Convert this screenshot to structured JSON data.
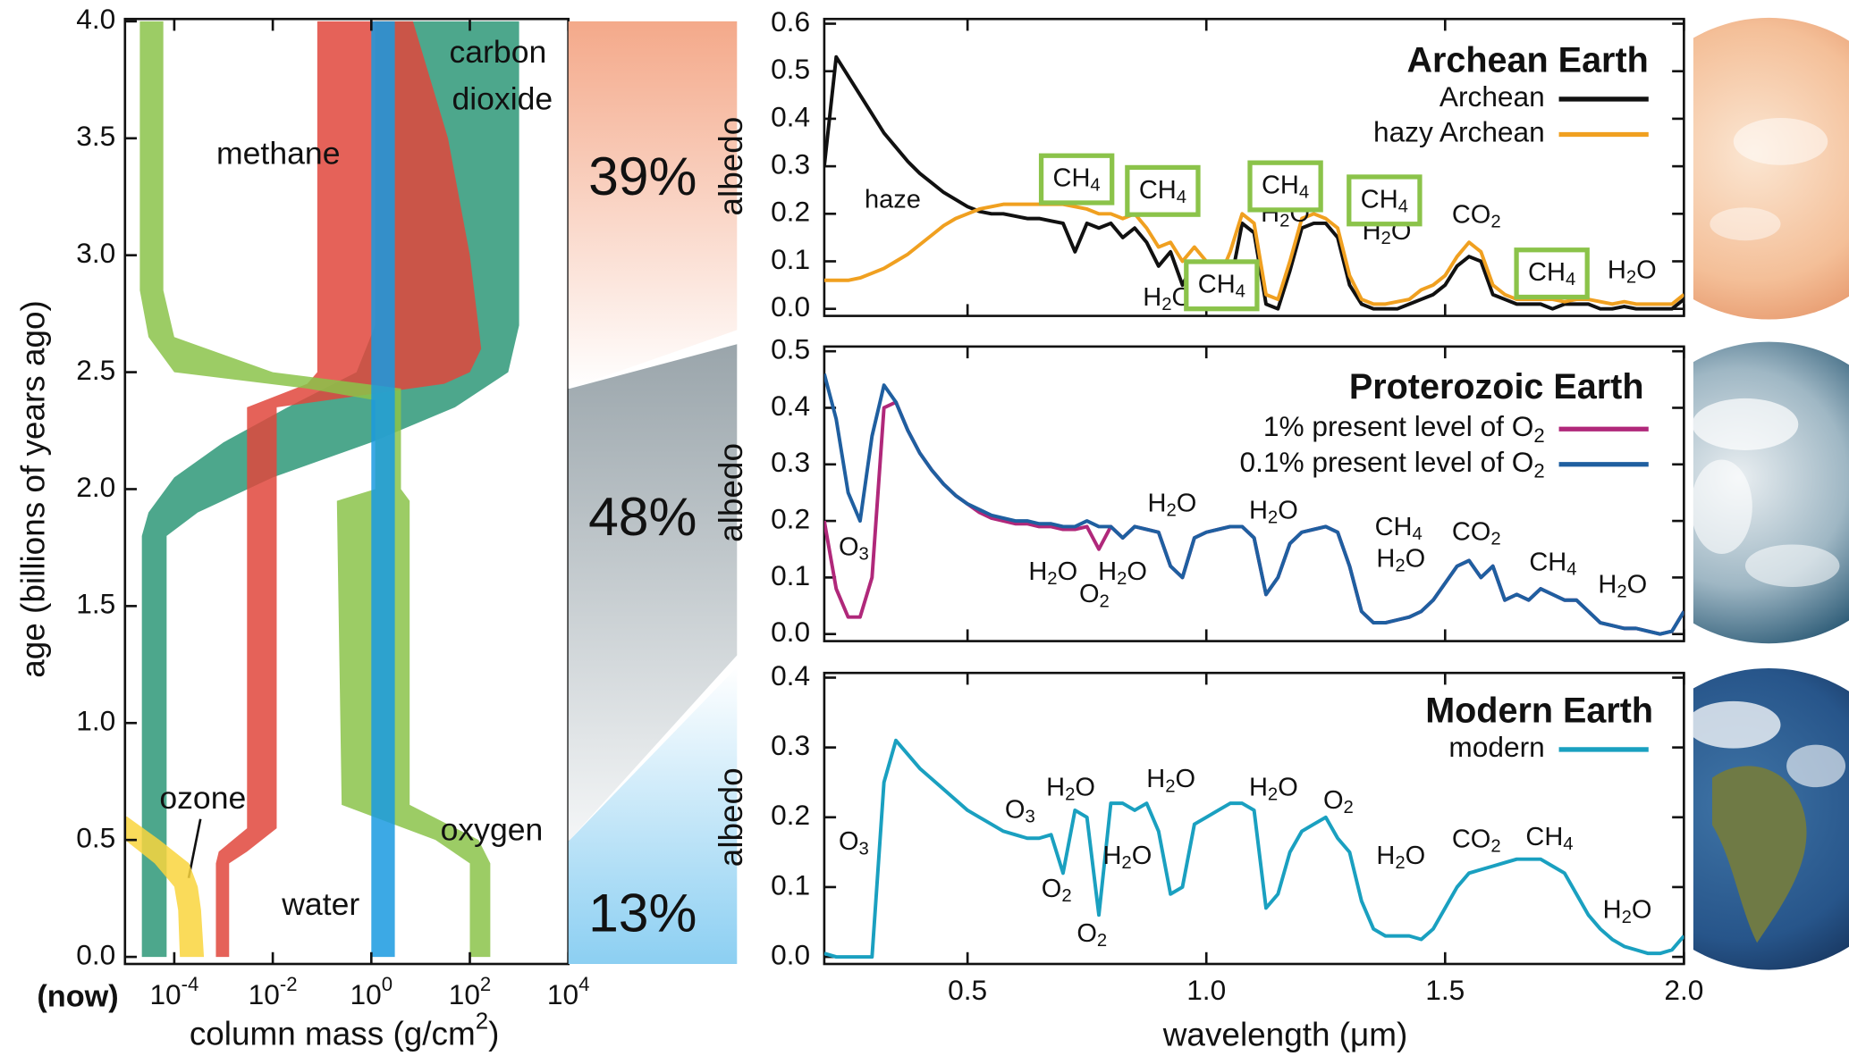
{
  "chart_data": [
    {
      "type": "area",
      "xscale": "log",
      "xlabel": "column mass (g/cm2)",
      "ylabel": "age (billions of years ago)",
      "annotations": [
        "(now)"
      ],
      "xlim": [
        1e-05,
        10000
      ],
      "ylim": [
        0,
        4
      ],
      "xticks": [
        {
          "value": 0.0001,
          "label": "10-4"
        },
        {
          "value": 0.01,
          "label": "10-2"
        },
        {
          "value": 1,
          "label": "100"
        },
        {
          "value": 100,
          "label": "102"
        },
        {
          "value": 10000,
          "label": "104"
        }
      ],
      "yticks": [
        {
          "value": 0,
          "label": "0.0"
        },
        0.5,
        {
          "value": 1,
          "label": "1.0"
        },
        1.5,
        {
          "value": 2,
          "label": "2.0"
        },
        2.5,
        {
          "value": 3,
          "label": "3.0"
        },
        3.5,
        {
          "value": 4,
          "label": "4.0"
        }
      ],
      "series": [
        {
          "name": "carbon dioxide",
          "color": "#2e9878",
          "age": [
            4.0,
            2.7,
            2.5,
            2.35,
            2.2,
            2.05,
            1.9,
            1.8,
            0.0
          ],
          "low": [
            1.2,
            1.2,
            0.5,
            0.02,
            0.001,
            0.0001,
            3e-05,
            2.2e-05,
            2.2e-05
          ],
          "high": [
            1000,
            1000,
            600,
            50,
            1.0,
            0.01,
            0.0003,
            7e-05,
            7e-05
          ]
        },
        {
          "name": "methane",
          "color": "#e0463c",
          "age": [
            4.0,
            3.5,
            3.0,
            2.6,
            2.5,
            2.45,
            2.35,
            2.3,
            0.55,
            0.45,
            0.4,
            0.0
          ],
          "low": [
            0.08,
            0.08,
            0.08,
            0.08,
            0.08,
            0.05,
            0.003,
            0.003,
            0.003,
            0.0008,
            0.0007,
            0.0007
          ],
          "high": [
            7,
            36,
            100,
            170,
            100,
            30,
            0.012,
            0.012,
            0.012,
            0.003,
            0.0013,
            0.0013
          ]
        },
        {
          "name": "oxygen",
          "color": "#8bc34a",
          "age": [
            4.0,
            2.85,
            2.65,
            2.5,
            2.43,
            2.38,
            2.0,
            1.95,
            0.65,
            0.5,
            0.4,
            0.0
          ],
          "low": [
            2e-05,
            2e-05,
            3e-05,
            0.0001,
            0.05,
            1.2,
            1.2,
            0.2,
            0.25,
            20,
            100,
            100
          ],
          "high": [
            6e-05,
            6e-05,
            0.0001,
            0.01,
            4,
            4,
            4,
            6,
            6,
            150,
            260,
            260
          ]
        },
        {
          "name": "water",
          "color": "#1a9ae0",
          "age": [
            4.0,
            0.0
          ],
          "low": [
            1,
            1
          ],
          "high": [
            3,
            3
          ]
        },
        {
          "name": "ozone",
          "color": "#f9d53d",
          "age": [
            0.6,
            0.5,
            0.4,
            0.3,
            0.2,
            0.0
          ],
          "low": [
            1e-05,
            1e-05,
            4e-05,
            0.0001,
            0.00012,
            0.00013
          ],
          "high": [
            1.1e-05,
            5e-05,
            0.0002,
            0.0003,
            0.00035,
            0.0004
          ]
        }
      ]
    },
    {
      "type": "bar",
      "stacked": true,
      "values": [
        39,
        48,
        13
      ],
      "value_labels": [
        "39%",
        "48%",
        "13%"
      ],
      "colors": [
        "#f4a98a",
        "#9aa5ab",
        "#8ccff2"
      ],
      "label_colors": [
        "#a8601c",
        "#555555",
        "#1a8fd6"
      ]
    },
    {
      "type": "line",
      "title": "Archean Earth",
      "ylabel": "albedo",
      "annotations": [
        "haze",
        "CH4",
        "CH4",
        "H2O",
        "CH4",
        "H2O",
        "CH4",
        "H2O",
        "CH4",
        "CO2",
        "CH4",
        "H2O"
      ],
      "xlim": [
        0.2,
        2.0
      ],
      "ylim": [
        0,
        0.6
      ],
      "yticks": [
        {
          "value": 0,
          "label": "0.0"
        },
        0.1,
        0.2,
        0.3,
        0.4,
        0.5,
        0.6
      ],
      "x": [
        0.2,
        0.225,
        0.25,
        0.275,
        0.3,
        0.325,
        0.35,
        0.375,
        0.4,
        0.425,
        0.45,
        0.475,
        0.5,
        0.525,
        0.55,
        0.575,
        0.6,
        0.625,
        0.65,
        0.675,
        0.7,
        0.725,
        0.75,
        0.775,
        0.8,
        0.825,
        0.85,
        0.875,
        0.9,
        0.925,
        0.95,
        0.975,
        1.0,
        1.025,
        1.05,
        1.075,
        1.1,
        1.125,
        1.15,
        1.175,
        1.2,
        1.225,
        1.25,
        1.275,
        1.3,
        1.325,
        1.35,
        1.375,
        1.4,
        1.425,
        1.45,
        1.475,
        1.5,
        1.525,
        1.55,
        1.575,
        1.6,
        1.625,
        1.65,
        1.675,
        1.7,
        1.725,
        1.75,
        1.775,
        1.8,
        1.825,
        1.85,
        1.875,
        1.9,
        1.925,
        1.95,
        1.975,
        2.0
      ],
      "series": [
        {
          "name": "Archean",
          "color": "#111111",
          "values": [
            0.3,
            0.53,
            0.49,
            0.45,
            0.41,
            0.37,
            0.34,
            0.31,
            0.285,
            0.265,
            0.245,
            0.23,
            0.215,
            0.205,
            0.2,
            0.2,
            0.195,
            0.19,
            0.19,
            0.185,
            0.18,
            0.12,
            0.18,
            0.17,
            0.18,
            0.15,
            0.17,
            0.14,
            0.09,
            0.12,
            0.05,
            0.1,
            0.06,
            0.03,
            0.05,
            0.18,
            0.16,
            0.01,
            0,
            0.08,
            0.17,
            0.18,
            0.18,
            0.15,
            0.05,
            0.01,
            0,
            0,
            0,
            0.01,
            0.02,
            0.03,
            0.05,
            0.09,
            0.11,
            0.1,
            0.03,
            0.02,
            0.01,
            0.01,
            0.01,
            0,
            0.01,
            0.01,
            0.01,
            0,
            0,
            0.005,
            0,
            0,
            0,
            0,
            0.02
          ]
        },
        {
          "name": "hazy Archean",
          "color": "#f0a020",
          "values": [
            0.06,
            0.06,
            0.06,
            0.065,
            0.075,
            0.085,
            0.1,
            0.115,
            0.135,
            0.155,
            0.175,
            0.19,
            0.2,
            0.21,
            0.215,
            0.22,
            0.22,
            0.22,
            0.22,
            0.22,
            0.22,
            0.215,
            0.21,
            0.2,
            0.2,
            0.19,
            0.2,
            0.17,
            0.13,
            0.14,
            0.1,
            0.13,
            0.1,
            0.06,
            0.12,
            0.2,
            0.18,
            0.03,
            0.02,
            0.1,
            0.19,
            0.2,
            0.19,
            0.17,
            0.07,
            0.02,
            0.01,
            0.01,
            0.015,
            0.02,
            0.04,
            0.05,
            0.07,
            0.11,
            0.14,
            0.12,
            0.05,
            0.03,
            0.02,
            0.02,
            0.02,
            0.02,
            0.015,
            0.02,
            0.02,
            0.015,
            0.01,
            0.015,
            0.01,
            0.01,
            0.01,
            0.01,
            0.03
          ]
        }
      ]
    },
    {
      "type": "line",
      "title": "Proterozoic Earth",
      "ylabel": "albedo",
      "annotations": [
        "O3",
        "H2O",
        "H2O",
        "H2O",
        "O2",
        "H2O",
        "CH4",
        "H2O",
        "CO2",
        "CH4",
        "H2O"
      ],
      "xlim": [
        0.2,
        2.0
      ],
      "ylim": [
        0,
        0.5
      ],
      "yticks": [
        {
          "value": 0,
          "label": "0.0"
        },
        0.1,
        0.2,
        0.3,
        0.4,
        0.5
      ],
      "x": [
        0.2,
        0.225,
        0.25,
        0.275,
        0.3,
        0.325,
        0.35,
        0.375,
        0.4,
        0.425,
        0.45,
        0.475,
        0.5,
        0.525,
        0.55,
        0.575,
        0.6,
        0.625,
        0.65,
        0.675,
        0.7,
        0.725,
        0.75,
        0.775,
        0.8,
        0.825,
        0.85,
        0.875,
        0.9,
        0.925,
        0.95,
        0.975,
        1.0,
        1.025,
        1.05,
        1.075,
        1.1,
        1.125,
        1.15,
        1.175,
        1.2,
        1.225,
        1.25,
        1.275,
        1.3,
        1.325,
        1.35,
        1.375,
        1.4,
        1.425,
        1.45,
        1.475,
        1.5,
        1.525,
        1.55,
        1.575,
        1.6,
        1.625,
        1.65,
        1.675,
        1.7,
        1.725,
        1.75,
        1.775,
        1.8,
        1.825,
        1.85,
        1.875,
        1.9,
        1.925,
        1.95,
        1.975,
        2.0
      ],
      "series": [
        {
          "name": "1% present level of O2",
          "color": "#b0287a",
          "values": [
            0.2,
            0.08,
            0.03,
            0.03,
            0.1,
            0.4,
            0.41,
            0.36,
            0.32,
            0.29,
            0.265,
            0.245,
            0.23,
            0.215,
            0.205,
            0.2,
            0.195,
            0.195,
            0.19,
            0.19,
            0.185,
            0.185,
            0.19,
            0.15,
            0.19,
            0.17,
            0.19,
            0.185,
            0.18,
            0.12,
            0.1,
            0.17,
            0.18,
            0.185,
            0.19,
            0.19,
            0.17,
            0.07,
            0.1,
            0.16,
            0.18,
            0.185,
            0.19,
            0.18,
            0.12,
            0.04,
            0.02,
            0.02,
            0.025,
            0.03,
            0.04,
            0.06,
            0.09,
            0.12,
            0.13,
            0.1,
            0.12,
            0.06,
            0.07,
            0.06,
            0.08,
            0.07,
            0.06,
            0.06,
            0.04,
            0.02,
            0.015,
            0.01,
            0.01,
            0.005,
            0,
            0.005,
            0.04
          ]
        },
        {
          "name": "0.1% present level of O2",
          "color": "#1f5fa0",
          "values": [
            0.46,
            0.38,
            0.25,
            0.2,
            0.35,
            0.44,
            0.41,
            0.36,
            0.32,
            0.29,
            0.265,
            0.245,
            0.23,
            0.22,
            0.21,
            0.205,
            0.2,
            0.2,
            0.195,
            0.195,
            0.19,
            0.19,
            0.2,
            0.19,
            0.19,
            0.17,
            0.19,
            0.185,
            0.18,
            0.12,
            0.1,
            0.17,
            0.18,
            0.185,
            0.19,
            0.19,
            0.17,
            0.07,
            0.1,
            0.16,
            0.18,
            0.185,
            0.19,
            0.18,
            0.12,
            0.04,
            0.02,
            0.02,
            0.025,
            0.03,
            0.04,
            0.06,
            0.09,
            0.12,
            0.13,
            0.1,
            0.12,
            0.06,
            0.07,
            0.06,
            0.08,
            0.07,
            0.06,
            0.06,
            0.04,
            0.02,
            0.015,
            0.01,
            0.01,
            0.005,
            0,
            0.005,
            0.04
          ]
        }
      ]
    },
    {
      "type": "line",
      "title": "Modern Earth",
      "ylabel": "albedo",
      "xlabel": "wavelength (μm)",
      "annotations": [
        "O3",
        "O3",
        "H2O",
        "O2",
        "O2",
        "H2O",
        "H2O",
        "H2O",
        "O2",
        "H2O",
        "CO2",
        "CH4",
        "H2O"
      ],
      "xlim": [
        0.2,
        2.0
      ],
      "ylim": [
        0,
        0.4
      ],
      "xticks": [
        0.5,
        {
          "value": 1,
          "label": "1.0"
        },
        1.5,
        {
          "value": 2,
          "label": "2.0"
        }
      ],
      "yticks": [
        {
          "value": 0,
          "label": "0.0"
        },
        0.1,
        0.2,
        0.3,
        0.4
      ],
      "x": [
        0.2,
        0.225,
        0.25,
        0.275,
        0.3,
        0.325,
        0.35,
        0.375,
        0.4,
        0.425,
        0.45,
        0.475,
        0.5,
        0.525,
        0.55,
        0.575,
        0.6,
        0.625,
        0.65,
        0.675,
        0.7,
        0.725,
        0.75,
        0.775,
        0.8,
        0.825,
        0.85,
        0.875,
        0.9,
        0.925,
        0.95,
        0.975,
        1.0,
        1.025,
        1.05,
        1.075,
        1.1,
        1.125,
        1.15,
        1.175,
        1.2,
        1.225,
        1.25,
        1.275,
        1.3,
        1.325,
        1.35,
        1.375,
        1.4,
        1.425,
        1.45,
        1.475,
        1.5,
        1.525,
        1.55,
        1.575,
        1.6,
        1.625,
        1.65,
        1.675,
        1.7,
        1.725,
        1.75,
        1.775,
        1.8,
        1.825,
        1.85,
        1.875,
        1.9,
        1.925,
        1.95,
        1.975,
        2.0
      ],
      "series": [
        {
          "name": "modern",
          "color": "#1aa0c0",
          "values": [
            0.005,
            0,
            0,
            0,
            0,
            0.25,
            0.31,
            0.29,
            0.27,
            0.255,
            0.24,
            0.225,
            0.21,
            0.2,
            0.19,
            0.18,
            0.175,
            0.17,
            0.17,
            0.175,
            0.12,
            0.21,
            0.2,
            0.06,
            0.22,
            0.22,
            0.21,
            0.22,
            0.18,
            0.09,
            0.1,
            0.19,
            0.2,
            0.21,
            0.22,
            0.22,
            0.21,
            0.07,
            0.09,
            0.15,
            0.18,
            0.19,
            0.2,
            0.17,
            0.15,
            0.08,
            0.04,
            0.03,
            0.03,
            0.03,
            0.025,
            0.04,
            0.07,
            0.1,
            0.12,
            0.125,
            0.13,
            0.135,
            0.14,
            0.14,
            0.14,
            0.13,
            0.12,
            0.09,
            0.06,
            0.04,
            0.025,
            0.015,
            0.01,
            0.005,
            0.005,
            0.01,
            0.03
          ]
        }
      ]
    }
  ]
}
